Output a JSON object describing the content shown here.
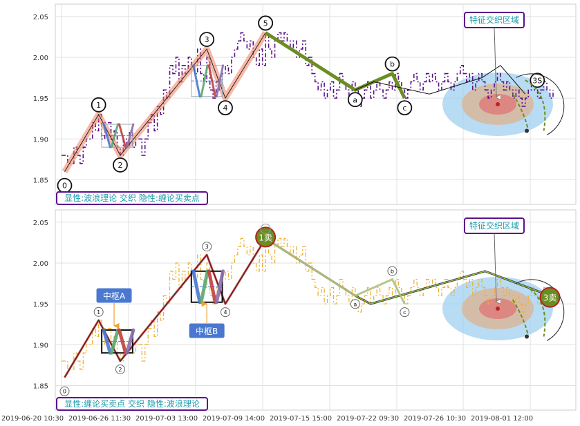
{
  "chart_data": [
    {
      "type": "line",
      "ylim": [
        1.82,
        2.065
      ],
      "y_ticks": [
        "1.85",
        "1.90",
        "1.95",
        "2.00",
        "2.05"
      ],
      "y_tick_values": [
        1.85,
        1.9,
        1.95,
        2.0,
        2.05
      ],
      "annotation": "显性:波浪理论 交织 隐性:缠论买卖点",
      "callout": "特征交织区域",
      "price_series": {
        "x": [
          0,
          1,
          2,
          3,
          4,
          5,
          6,
          7,
          8,
          9,
          10,
          11,
          12,
          13,
          14,
          15,
          16,
          17,
          18,
          19,
          20,
          21,
          22,
          23,
          24,
          25,
          26,
          27,
          28,
          29,
          30,
          31,
          32,
          33,
          34,
          35,
          36,
          37,
          38,
          39,
          40,
          41,
          42,
          43,
          44,
          45,
          46,
          47,
          48,
          49,
          50,
          51,
          52,
          53,
          54,
          55,
          56,
          57,
          58,
          59,
          60,
          61,
          62,
          63,
          64,
          65,
          66,
          67,
          68,
          69,
          70,
          71,
          72,
          73,
          74,
          75,
          76,
          77,
          78,
          79,
          80,
          81,
          82,
          83,
          84,
          85,
          86,
          87,
          88,
          89,
          90,
          91,
          92,
          93,
          94,
          95,
          96,
          97,
          98,
          99,
          100,
          101,
          102,
          103,
          104,
          105,
          106,
          107,
          108,
          109,
          110,
          111,
          112,
          113,
          114,
          115,
          116,
          117,
          118,
          119,
          120,
          121,
          122,
          123,
          124,
          125,
          126,
          127,
          128,
          129,
          130,
          131,
          132,
          133,
          134,
          135,
          136,
          137,
          138,
          139,
          140,
          141,
          142,
          143,
          144,
          145,
          146,
          147,
          148,
          149,
          150,
          151,
          152,
          153,
          154,
          155,
          156,
          157,
          158,
          159
        ],
        "y": [
          1.88,
          1.88,
          1.87,
          1.87,
          1.89,
          1.88,
          1.87,
          1.89,
          1.9,
          1.9,
          1.92,
          1.91,
          1.93,
          1.9,
          1.92,
          1.92,
          1.9,
          1.91,
          1.89,
          1.88,
          1.9,
          1.89,
          1.91,
          1.89,
          1.9,
          1.9,
          1.88,
          1.9,
          1.92,
          1.93,
          1.91,
          1.94,
          1.93,
          1.96,
          1.95,
          1.99,
          1.98,
          2.0,
          1.97,
          1.99,
          1.98,
          2.0,
          1.99,
          1.98,
          2.01,
          1.98,
          1.97,
          2.0,
          1.96,
          1.95,
          1.97,
          1.96,
          1.98,
          1.99,
          1.98,
          2.0,
          2.01,
          2.02,
          2.03,
          2.02,
          2.01,
          2.02,
          2.0,
          1.99,
          2.01,
          1.99,
          2.03,
          2.01,
          2.0,
          2.02,
          2.03,
          2.02,
          2.03,
          2.02,
          2.01,
          2.02,
          2.0,
          2.01,
          2.02,
          1.99,
          2.0,
          1.98,
          1.97,
          1.96,
          1.97,
          1.95,
          1.96,
          1.97,
          1.95,
          1.96,
          1.98,
          1.97,
          1.96,
          1.95,
          1.97,
          1.96,
          1.94,
          1.95,
          1.96,
          1.97,
          1.95,
          1.96,
          1.97,
          1.96,
          1.95,
          1.96,
          1.97,
          1.96,
          1.98,
          1.97,
          1.96,
          1.95,
          1.96,
          1.97,
          1.98,
          1.97,
          1.96,
          1.97,
          1.98,
          1.97,
          1.98,
          1.97,
          1.96,
          1.97,
          1.98,
          1.97,
          1.96,
          1.97,
          1.98,
          1.99,
          1.98,
          1.97,
          1.98,
          1.96,
          1.97,
          1.98,
          1.97,
          1.96,
          1.95,
          1.96,
          1.97,
          1.98,
          1.97,
          1.96,
          1.97,
          1.96,
          1.95,
          1.96,
          1.95,
          1.94,
          1.95,
          1.96,
          1.97,
          1.96,
          1.95,
          1.96,
          1.97,
          1.96,
          1.95,
          1.96
        ]
      },
      "wave_points": [
        {
          "label": "0",
          "x": 1,
          "y": 1.86
        },
        {
          "label": "1",
          "x": 12,
          "y": 1.93
        },
        {
          "label": "2",
          "x": 19,
          "y": 1.88
        },
        {
          "label": "3",
          "x": 47,
          "y": 2.01
        },
        {
          "label": "4",
          "x": 53,
          "y": 1.95
        },
        {
          "label": "5",
          "x": 66,
          "y": 2.03
        },
        {
          "label": "a",
          "x": 95,
          "y": 1.96
        },
        {
          "label": "b",
          "x": 107,
          "y": 1.98
        },
        {
          "label": "c",
          "x": 111,
          "y": 1.95
        },
        {
          "label": "3S",
          "x": 149,
          "y": 1.96
        }
      ]
    },
    {
      "type": "line",
      "ylim": [
        1.82,
        2.065
      ],
      "y_ticks": [
        "1.85",
        "1.90",
        "1.95",
        "2.00",
        "2.05"
      ],
      "y_tick_values": [
        1.85,
        1.9,
        1.95,
        2.0,
        2.05
      ],
      "annotation": "显性:缠论买卖点 交织 隐性:波浪理论",
      "callout": "特征交织区域",
      "zhongshu_labels": [
        "中枢A",
        "中枢B"
      ],
      "signals": [
        "1卖",
        "3卖"
      ],
      "wave_points": [
        {
          "label": "0",
          "x": 1,
          "y": 1.86
        },
        {
          "label": "1",
          "x": 12,
          "y": 1.93
        },
        {
          "label": "2",
          "x": 19,
          "y": 1.88
        },
        {
          "label": "3",
          "x": 47,
          "y": 2.01
        },
        {
          "label": "4",
          "x": 53,
          "y": 1.95
        },
        {
          "label": "a",
          "x": 95,
          "y": 1.96
        },
        {
          "label": "b",
          "x": 107,
          "y": 1.98
        },
        {
          "label": "c",
          "x": 111,
          "y": 1.95
        }
      ]
    }
  ],
  "x_axis": {
    "tick_labels": [
      "2019-06-20 10:30",
      "2019-06-26 11:30",
      "2019-07-03 13:00",
      "2019-07-09 14:00",
      "2019-07-15 15:00",
      "2019-07-22 09:30",
      "2019-07-26 10:30",
      "2019-08-01 12:00"
    ]
  },
  "colors": {
    "price_line": "#5b0f8a",
    "price_line_lower": "#f0b030",
    "wave_up": "#f08060",
    "correction": "#6b8e23",
    "zone_blue": "#9fd0f0",
    "zone_tan": "#d9b79a",
    "zone_red": "#e07070",
    "callout_border": "#5b0f8a",
    "callout_text": "#1a9aa8",
    "zhongshu_fill": "#4a78d0",
    "signal_fill": "#6b8e23"
  }
}
